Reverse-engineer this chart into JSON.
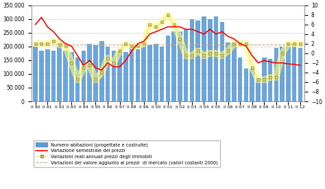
{
  "x_ticks_labels": [
    "II 90",
    "II 91",
    "II 92",
    "II 93",
    "II 94",
    "II 95",
    "II 96",
    "II 97",
    "II 98",
    "II 99",
    "II 00",
    "II 01",
    "II 02",
    "II 03",
    "II 04",
    "II 05",
    "II 06",
    "II 07",
    "II 08",
    "II 09",
    "II 10",
    "II 11",
    "II 12"
  ],
  "bar_values": [
    200000,
    185000,
    190000,
    185000,
    200000,
    185000,
    180000,
    160000,
    185000,
    210000,
    205000,
    220000,
    200000,
    185000,
    185000,
    180000,
    195000,
    190000,
    200000,
    205000,
    210000,
    200000,
    240000,
    255000,
    255000,
    265000,
    300000,
    295000,
    310000,
    300000,
    310000,
    290000,
    215000,
    215000,
    160000,
    120000,
    120000,
    85000,
    160000,
    155000,
    195000,
    200000,
    200000,
    200000,
    195000
  ],
  "red_line": [
    6.0,
    7.5,
    5.5,
    4.5,
    3.0,
    2.0,
    1.5,
    -0.5,
    -2.5,
    -1.5,
    -3.0,
    -3.5,
    -2.0,
    -2.8,
    -2.8,
    -1.5,
    0.5,
    2.0,
    2.5,
    4.0,
    4.5,
    5.0,
    5.5,
    5.5,
    5.5,
    5.0,
    5.0,
    4.5,
    4.0,
    5.0,
    4.0,
    4.5,
    3.5,
    3.0,
    2.0,
    1.5,
    -0.5,
    -2.0,
    -1.5,
    -1.8,
    -2.0,
    -2.0,
    -2.2,
    -2.3,
    -2.5
  ],
  "yellow_line": [
    2.0,
    2.0,
    2.0,
    2.5,
    1.8,
    1.5,
    -2.0,
    -5.5,
    -3.0,
    -2.5,
    -5.5,
    -4.0,
    -1.0,
    -2.0,
    0.5,
    2.0,
    1.5,
    1.5,
    2.0,
    6.0,
    5.5,
    6.5,
    8.0,
    6.0,
    3.0,
    -0.5,
    -0.5,
    0.5,
    -0.5,
    0.0,
    0.0,
    -0.5,
    0.5,
    2.0,
    2.0,
    2.0,
    -3.0,
    -5.5,
    -5.5,
    -5.0,
    -5.0,
    0.0,
    2.0,
    2.0,
    2.0
  ],
  "tan_line": [
    1.8,
    1.8,
    1.8,
    1.8,
    1.8,
    1.8,
    1.8,
    1.8,
    1.8,
    1.8,
    1.8,
    1.8,
    1.8,
    1.8,
    1.8,
    1.8,
    1.8,
    1.8,
    1.8,
    1.8,
    1.8,
    1.8,
    1.8,
    1.8,
    1.8,
    1.8,
    1.8,
    1.8,
    1.8,
    1.8,
    1.8,
    1.8,
    1.8,
    1.8,
    1.8,
    1.8,
    1.8,
    1.8,
    1.8,
    1.8,
    1.8,
    1.8,
    1.8,
    1.8,
    1.8
  ],
  "bar_color": "#5B9BD5",
  "red_line_color": "#FF0000",
  "yellow_marker_facecolor": "#D4C870",
  "yellow_marker_edgecolor": "#A09040",
  "yellow_glow_color": "#FFFF80",
  "yellow_line_color": "#B8A840",
  "tan_line_color": "#C4A882",
  "background_color": "#FFFFFF",
  "grid_color": "#D0D0D0",
  "ylim_left": [
    0,
    350000
  ],
  "ylim_right": [
    -10,
    10
  ],
  "yticks_left": [
    0,
    50000,
    100000,
    150000,
    200000,
    250000,
    300000,
    350000
  ],
  "yticks_right": [
    -10,
    -8,
    -6,
    -4,
    -2,
    0,
    2,
    4,
    6,
    8,
    10
  ],
  "legend1": "Numero abitazioni (progettate e costruite)",
  "legend2": "Variazione semestrale dei prezzi",
  "legend3": "Variazioni reali annuali prezzi degli immobili",
  "legend4": "Variazioni del valore aggiunto ai prezzi  di mercato (valori costanti 2000)"
}
